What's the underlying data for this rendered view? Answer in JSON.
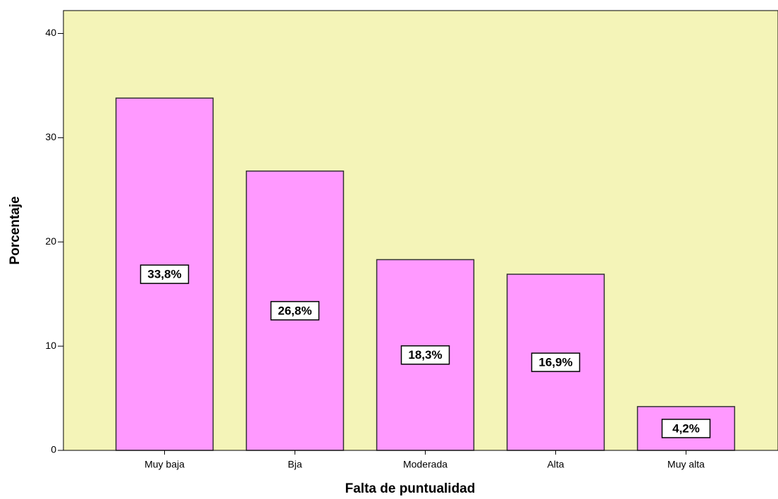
{
  "chart_data": {
    "type": "bar",
    "x_label": "Falta de puntualidad",
    "y_label": "Porcentaje",
    "categories": [
      "Muy baja",
      "Bja",
      "Moderada",
      "Alta",
      "Muy alta"
    ],
    "values": [
      33.8,
      26.8,
      18.3,
      16.9,
      4.2
    ],
    "value_labels": [
      "33,8%",
      "26,8%",
      "18,3%",
      "16,9%",
      "4,2%"
    ],
    "color": "#ff99ff",
    "background": "#f4f4b8",
    "ylim": [
      0,
      42.2
    ],
    "yticks": [
      0,
      10,
      20,
      30,
      40
    ],
    "grid": false
  }
}
